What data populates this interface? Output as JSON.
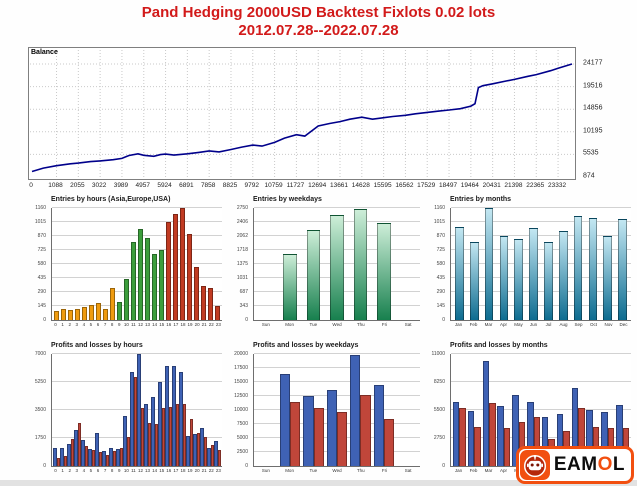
{
  "title": {
    "line1": "Pand Hedging 2000USD Backtest Fixlots 0.02 lots",
    "line2": "2012.07.28--2022.07.28"
  },
  "chart_data": [
    {
      "type": "line",
      "legend": "Balance",
      "line_color": "#00008b",
      "x_ticks": [
        0,
        1088,
        2055,
        3022,
        3989,
        4957,
        5924,
        6891,
        7858,
        8825,
        9792,
        10759,
        11727,
        12694,
        13661,
        14628,
        15595,
        16562,
        17529,
        18497,
        19464,
        20431,
        21398,
        22365,
        23332
      ],
      "y_ticks": [
        874,
        5535,
        10195,
        14856,
        19516,
        24177
      ],
      "x_max": 23950,
      "y_min": 874,
      "y_max": 24177,
      "points": [
        [
          0,
          2000
        ],
        [
          500,
          2700
        ],
        [
          1088,
          3200
        ],
        [
          1700,
          3600
        ],
        [
          2055,
          3750
        ],
        [
          2600,
          4050
        ],
        [
          3022,
          4200
        ],
        [
          3600,
          4450
        ],
        [
          3989,
          4700
        ],
        [
          4300,
          5300
        ],
        [
          4700,
          5650
        ],
        [
          4957,
          5350
        ],
        [
          5400,
          5150
        ],
        [
          5700,
          5500
        ],
        [
          5924,
          5600
        ],
        [
          6300,
          5400
        ],
        [
          6891,
          5650
        ],
        [
          7400,
          5950
        ],
        [
          7858,
          6250
        ],
        [
          8300,
          6050
        ],
        [
          8825,
          6550
        ],
        [
          9300,
          7050
        ],
        [
          9792,
          7450
        ],
        [
          10200,
          7250
        ],
        [
          10759,
          8000
        ],
        [
          11200,
          8900
        ],
        [
          11727,
          9600
        ],
        [
          12100,
          9300
        ],
        [
          12694,
          11400
        ],
        [
          13200,
          11900
        ],
        [
          13661,
          12300
        ],
        [
          14100,
          12800
        ],
        [
          14628,
          13200
        ],
        [
          15100,
          12800
        ],
        [
          15595,
          13100
        ],
        [
          16000,
          13350
        ],
        [
          16562,
          13600
        ],
        [
          17000,
          13900
        ],
        [
          17529,
          14200
        ],
        [
          18000,
          14450
        ],
        [
          18497,
          14700
        ],
        [
          19000,
          14950
        ],
        [
          19464,
          15500
        ],
        [
          19650,
          16000
        ],
        [
          19800,
          19300
        ],
        [
          20000,
          19700
        ],
        [
          20431,
          20100
        ],
        [
          21000,
          20650
        ],
        [
          21398,
          21000
        ],
        [
          22000,
          21650
        ],
        [
          22365,
          22000
        ],
        [
          23000,
          22800
        ],
        [
          23332,
          23300
        ],
        [
          23950,
          24177
        ]
      ]
    },
    {
      "type": "bar",
      "title": "Entries by hours (Asia,Europe,USA)",
      "categories": [
        "0",
        "1",
        "2",
        "3",
        "4",
        "5",
        "6",
        "7",
        "8",
        "9",
        "10",
        "11",
        "12",
        "13",
        "14",
        "15",
        "16",
        "17",
        "18",
        "19",
        "20",
        "21",
        "22",
        "23"
      ],
      "values": [
        90,
        115,
        100,
        115,
        135,
        160,
        175,
        110,
        330,
        190,
        420,
        810,
        940,
        845,
        680,
        720,
        1010,
        1100,
        1160,
        890,
        545,
        350,
        330,
        150
      ],
      "bar_colors": [
        "#ef9b0f",
        "#ef9b0f",
        "#ef9b0f",
        "#ef9b0f",
        "#ef9b0f",
        "#ef9b0f",
        "#ef9b0f",
        "#ef9b0f",
        "#ef9b0f",
        "#3c9e3c",
        "#3c9e3c",
        "#3c9e3c",
        "#3c9e3c",
        "#3c9e3c",
        "#3c9e3c",
        "#3c9e3c",
        "#c13b22",
        "#c13b22",
        "#c13b22",
        "#c13b22",
        "#c13b22",
        "#c13b22",
        "#c13b22",
        "#c13b22"
      ],
      "yticks": [
        0,
        145,
        290,
        435,
        580,
        725,
        870,
        1015,
        1160
      ],
      "ymax": 1160
    },
    {
      "type": "bar",
      "title": "Entries by weekdays",
      "categories": [
        "Sun",
        "Mon",
        "Tue",
        "Wed",
        "Thu",
        "Fri",
        "Sat"
      ],
      "values": [
        0,
        1630,
        2200,
        2570,
        2730,
        2390,
        0
      ],
      "bar_gradient": [
        "#cdeed8",
        "#17804e"
      ],
      "yticks": [
        0,
        343,
        687,
        1031,
        1375,
        1718,
        2062,
        2406,
        2750
      ],
      "ymax": 2750
    },
    {
      "type": "bar",
      "title": "Entries by months",
      "categories": [
        "Jan",
        "Feb",
        "Mar",
        "Apr",
        "May",
        "Jun",
        "Jul",
        "Aug",
        "Sep",
        "Oct",
        "Nov",
        "Dec"
      ],
      "values": [
        960,
        810,
        1160,
        870,
        840,
        950,
        810,
        920,
        1080,
        1060,
        870,
        1050
      ],
      "bar_gradient": [
        "#c3e7f2",
        "#0d6c90"
      ],
      "yticks": [
        0,
        145,
        290,
        435,
        580,
        725,
        870,
        1015,
        1160
      ],
      "ymax": 1160
    },
    {
      "type": "dual-bar",
      "title": "Profits and losses by hours",
      "categories": [
        "0",
        "1",
        "2",
        "3",
        "4",
        "5",
        "6",
        "7",
        "8",
        "9",
        "10",
        "11",
        "12",
        "13",
        "14",
        "15",
        "16",
        "17",
        "18",
        "19",
        "20",
        "21",
        "22",
        "23"
      ],
      "series": [
        {
          "name": "profit",
          "color": "#3f62b5",
          "values": [
            1100,
            1150,
            1350,
            2250,
            1650,
            1050,
            2050,
            950,
            1100,
            1050,
            3150,
            5900,
            7000,
            3850,
            4300,
            5250,
            6250,
            6250,
            5900,
            1900,
            2000,
            2400,
            1100,
            1550
          ]
        },
        {
          "name": "loss",
          "color": "#c0463a",
          "values": [
            500,
            650,
            1700,
            2700,
            1250,
            1000,
            850,
            700,
            950,
            1100,
            1800,
            5550,
            3600,
            2700,
            2600,
            3600,
            3700,
            3850,
            3900,
            2950,
            2050,
            1800,
            1300,
            1000
          ]
        }
      ],
      "yticks": [
        0,
        1750,
        3500,
        5250,
        7000
      ],
      "ymax": 7000
    },
    {
      "type": "dual-bar",
      "title": "Profits and losses by weekdays",
      "categories": [
        "Sun",
        "Mon",
        "Tue",
        "Wed",
        "Thu",
        "Fri",
        "Sat"
      ],
      "series": [
        {
          "name": "profit",
          "color": "#3f62b5",
          "values": [
            0,
            16400,
            12500,
            13500,
            19900,
            14400,
            0
          ]
        },
        {
          "name": "loss",
          "color": "#c0463a",
          "values": [
            0,
            11500,
            10400,
            9700,
            12600,
            8400,
            0
          ]
        }
      ],
      "yticks": [
        0,
        2500,
        5000,
        7500,
        10000,
        12500,
        15000,
        17500,
        20000
      ],
      "ymax": 20000
    },
    {
      "type": "dual-bar",
      "title": "Profits and losses by months",
      "categories": [
        "Jan",
        "Feb",
        "Mar",
        "Apr",
        "May",
        "Jun",
        "Jul",
        "Aug",
        "Sep",
        "Oct",
        "Nov",
        "Dec"
      ],
      "series": [
        {
          "name": "profit",
          "color": "#3f62b5",
          "values": [
            6300,
            5400,
            10300,
            5900,
            7000,
            6300,
            4800,
            5100,
            7700,
            5500,
            5300,
            6000
          ]
        },
        {
          "name": "loss",
          "color": "#c0463a",
          "values": [
            5700,
            3800,
            6200,
            3700,
            4300,
            4800,
            2700,
            3400,
            5700,
            3800,
            3700,
            3700
          ]
        }
      ],
      "yticks": [
        0,
        2750,
        5500,
        8250,
        11000
      ],
      "ymax": 11000
    }
  ],
  "logo": {
    "text_pre": "EAM",
    "text_accent": "O",
    "text_post": "L",
    "accent_color": "#f24f10",
    "bg_color": "#f24f10"
  }
}
